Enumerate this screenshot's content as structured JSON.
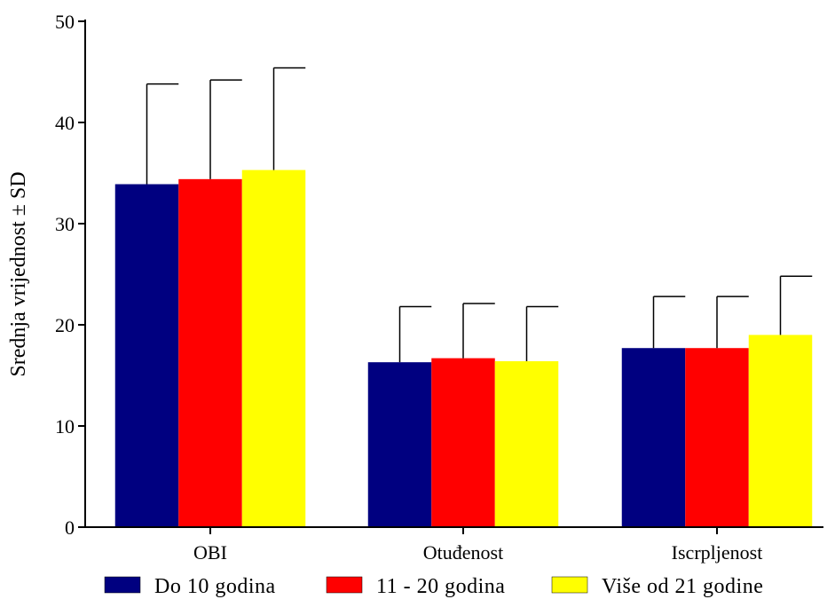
{
  "chart_data": {
    "type": "bar",
    "title": "",
    "xlabel": "",
    "ylabel": "Srednja vrijednost ± SD",
    "ylim": [
      0,
      50
    ],
    "yticks": [
      0,
      10,
      20,
      30,
      40,
      50
    ],
    "categories": [
      "OBI",
      "Otuđenost",
      "Iscrpljenost"
    ],
    "series": [
      {
        "name": "Do 10 godina",
        "color": "#000080",
        "values": [
          33.9,
          16.3,
          17.7
        ],
        "sd": [
          9.9,
          5.5,
          5.1
        ]
      },
      {
        "name": "11 - 20 godina",
        "color": "#ff0000",
        "values": [
          34.4,
          16.7,
          17.7
        ],
        "sd": [
          9.8,
          5.4,
          5.1
        ]
      },
      {
        "name": "Više od 21 godine",
        "color": "#ffff00",
        "values": [
          35.3,
          16.4,
          19.0
        ],
        "sd": [
          10.1,
          5.4,
          5.8
        ]
      }
    ],
    "grid": false,
    "legend_position": "bottom"
  }
}
